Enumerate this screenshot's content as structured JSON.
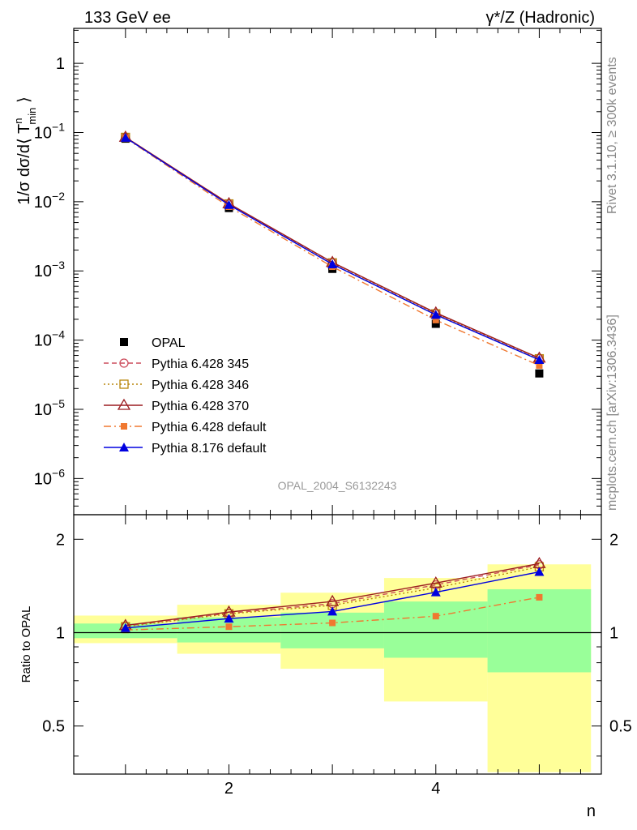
{
  "header": {
    "left": "133 GeV ee",
    "right": "γ*/Z (Hadronic)"
  },
  "side_labels": {
    "rivet": "Rivet 3.1.10, ≥ 300k events",
    "mcplots": "mcplots.cern.ch [arXiv:1306.3436]"
  },
  "watermark": "OPAL_2004_S6132243",
  "chart_data": [
    {
      "type": "line",
      "title": "",
      "xlabel": "n",
      "ylabel": "1/σ dσ/d⟨ T^n_min ⟩",
      "yscale": "log",
      "xlim": [
        0.5,
        5.6
      ],
      "ylim": [
        3e-07,
        3.2
      ],
      "x": [
        1,
        2,
        3,
        4,
        5
      ],
      "y_tick_labels": [
        "1",
        "10",
        "10",
        "10",
        "10",
        "10",
        "10"
      ],
      "y_tick_exponents": [
        "",
        "−1",
        "−2",
        "−3",
        "−4",
        "−5",
        "−6"
      ],
      "series": [
        {
          "name": "OPAL",
          "marker": "square-filled",
          "color": "#000000",
          "values": [
            0.0815,
            0.0081,
            0.00107,
            0.000172,
            3.3e-05
          ]
        },
        {
          "name": "Pythia 6.428 345",
          "marker": "circle-open",
          "line": "dashed",
          "color": "#cc4c5c",
          "values": [
            0.0855,
            0.00935,
            0.00132,
            0.000245,
            5.45e-05
          ]
        },
        {
          "name": "Pythia 6.428 346",
          "marker": "square-open",
          "line": "dotted",
          "color": "#b8860b",
          "values": [
            0.0852,
            0.0093,
            0.00131,
            0.00024,
            5.38e-05
          ]
        },
        {
          "name": "Pythia 6.428 370",
          "marker": "triangle-open",
          "line": "solid",
          "color": "#9b1c20",
          "values": [
            0.0858,
            0.0094,
            0.00133,
            0.000248,
            5.5e-05
          ]
        },
        {
          "name": "Pythia 6.428 default",
          "marker": "square-filled-small",
          "line": "dashdot",
          "color": "#f07830",
          "values": [
            0.0832,
            0.00848,
            0.00115,
            0.000195,
            4.3e-05
          ]
        },
        {
          "name": "Pythia 8.176 default",
          "marker": "triangle-filled",
          "line": "solid",
          "color": "#0000e0",
          "values": [
            0.0843,
            0.00902,
            0.00125,
            0.000232,
            5.18e-05
          ]
        }
      ]
    },
    {
      "type": "line",
      "title": "",
      "xlabel": "n",
      "ylabel": "Ratio to OPAL",
      "yscale": "log",
      "xlim": [
        0.5,
        5.6
      ],
      "ylim": [
        0.35,
        2.4
      ],
      "x": [
        1,
        2,
        3,
        4,
        5
      ],
      "x_ticks": [
        "2",
        "4"
      ],
      "y_ticks": [
        "0.5",
        "1",
        "2"
      ],
      "bands": {
        "green": [
          [
            0.96,
            1.07
          ],
          [
            0.93,
            1.12
          ],
          [
            0.89,
            1.16
          ],
          [
            0.83,
            1.26
          ],
          [
            0.745,
            1.38
          ]
        ],
        "yellow": [
          [
            0.925,
            1.135
          ],
          [
            0.855,
            1.23
          ],
          [
            0.765,
            1.345
          ],
          [
            0.6,
            1.5
          ],
          [
            0.355,
            1.66
          ]
        ]
      },
      "series": [
        {
          "name": "Pythia 6.428 345",
          "color": "#cc4c5c",
          "values": [
            1.05,
            1.155,
            1.24,
            1.425,
            1.655
          ]
        },
        {
          "name": "Pythia 6.428 346",
          "color": "#b8860b",
          "values": [
            1.045,
            1.15,
            1.225,
            1.395,
            1.63
          ]
        },
        {
          "name": "Pythia 6.428 370",
          "color": "#9b1c20",
          "values": [
            1.055,
            1.165,
            1.26,
            1.445,
            1.67
          ]
        },
        {
          "name": "Pythia 6.428 default",
          "color": "#f07830",
          "values": [
            1.02,
            1.045,
            1.075,
            1.13,
            1.3
          ]
        },
        {
          "name": "Pythia 8.176 default",
          "color": "#0000e0",
          "values": [
            1.035,
            1.11,
            1.17,
            1.35,
            1.57
          ]
        }
      ]
    }
  ]
}
